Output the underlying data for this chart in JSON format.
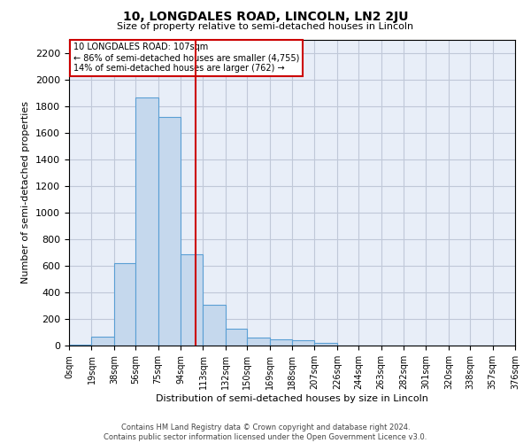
{
  "title1": "10, LONGDALES ROAD, LINCOLN, LN2 2JU",
  "title2": "Size of property relative to semi-detached houses in Lincoln",
  "xlabel": "Distribution of semi-detached houses by size in Lincoln",
  "ylabel": "Number of semi-detached properties",
  "footer1": "Contains HM Land Registry data © Crown copyright and database right 2024.",
  "footer2": "Contains public sector information licensed under the Open Government Licence v3.0.",
  "annotation_line1": "10 LONGDALES ROAD: 107sqm",
  "annotation_line2": "← 86% of semi-detached houses are smaller (4,755)",
  "annotation_line3": "14% of semi-detached houses are larger (762) →",
  "property_size": 107,
  "bin_edges": [
    0,
    19,
    38,
    56,
    75,
    94,
    113,
    132,
    150,
    169,
    188,
    207,
    226,
    244,
    263,
    282,
    301,
    320,
    338,
    357,
    376
  ],
  "bar_heights": [
    5,
    70,
    620,
    1870,
    1720,
    690,
    310,
    130,
    60,
    50,
    40,
    20,
    0,
    0,
    0,
    0,
    0,
    0,
    0,
    0
  ],
  "bar_color": "#c5d8ed",
  "bar_edge_color": "#5a9fd4",
  "vline_color": "#cc0000",
  "annotation_box_color": "#cc0000",
  "grid_color": "#c0c8d8",
  "background_color": "#e8eef8",
  "ylim": [
    0,
    2300
  ],
  "yticks": [
    0,
    200,
    400,
    600,
    800,
    1000,
    1200,
    1400,
    1600,
    1800,
    2000,
    2200
  ],
  "tick_labels": [
    "0sqm",
    "19sqm",
    "38sqm",
    "56sqm",
    "75sqm",
    "94sqm",
    "113sqm",
    "132sqm",
    "150sqm",
    "169sqm",
    "188sqm",
    "207sqm",
    "226sqm",
    "244sqm",
    "263sqm",
    "282sqm",
    "301sqm",
    "320sqm",
    "338sqm",
    "357sqm",
    "376sqm"
  ]
}
